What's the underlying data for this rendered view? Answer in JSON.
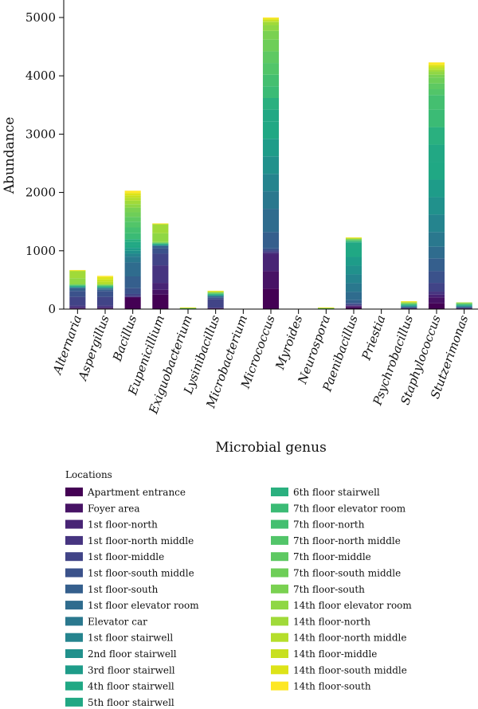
{
  "chart_data": {
    "type": "bar",
    "stacked": true,
    "xlabel": "Microbial genus",
    "ylabel": "Abundance",
    "ylim": [
      0,
      5300
    ],
    "yticks": [
      0,
      1000,
      2000,
      3000,
      4000,
      5000
    ],
    "categories": [
      "Alternaria",
      "Aspergillus",
      "Bacillus",
      "Eupenicillium",
      "Exiguobacterium",
      "Lysinibacillus",
      "Microbacterium",
      "Micrococcus",
      "Myroides",
      "Neurospora",
      "Paenibacillus",
      "Priestia",
      "Psychrobacillus",
      "Staphylococcus",
      "Stutzerimonas"
    ],
    "legend_title": "Locations",
    "legend_position": "bottom",
    "series": [
      {
        "name": "Apartment entrance",
        "color": "#440154",
        "values": [
          10,
          10,
          200,
          250,
          2,
          10,
          0,
          350,
          0,
          1,
          30,
          0,
          5,
          100,
          5
        ]
      },
      {
        "name": "Foyer area",
        "color": "#471365",
        "values": [
          10,
          10,
          5,
          80,
          1,
          5,
          0,
          300,
          0,
          1,
          20,
          0,
          5,
          100,
          5
        ]
      },
      {
        "name": "1st floor-north",
        "color": "#482475",
        "values": [
          10,
          10,
          5,
          120,
          1,
          5,
          0,
          300,
          0,
          1,
          10,
          0,
          5,
          50,
          5
        ]
      },
      {
        "name": "1st floor-north middle",
        "color": "#463480",
        "values": [
          30,
          30,
          10,
          300,
          1,
          5,
          0,
          30,
          0,
          1,
          5,
          0,
          5,
          50,
          5
        ]
      },
      {
        "name": "1st floor-middle",
        "color": "#414487",
        "values": [
          150,
          150,
          40,
          200,
          1,
          150,
          0,
          30,
          0,
          1,
          20,
          0,
          5,
          150,
          5
        ]
      },
      {
        "name": "1st floor-south middle",
        "color": "#3b528b",
        "values": [
          100,
          100,
          100,
          90,
          1,
          20,
          0,
          30,
          0,
          1,
          20,
          0,
          5,
          200,
          5
        ]
      },
      {
        "name": "1st floor-south",
        "color": "#355f8d",
        "values": [
          50,
          20,
          200,
          40,
          1,
          20,
          0,
          280,
          0,
          1,
          50,
          0,
          5,
          220,
          5
        ]
      },
      {
        "name": "1st floor elevator room",
        "color": "#2f6c8e",
        "values": [
          5,
          20,
          240,
          5,
          1,
          5,
          0,
          400,
          0,
          1,
          140,
          0,
          5,
          200,
          5
        ]
      },
      {
        "name": "Elevator car",
        "color": "#2a788e",
        "values": [
          5,
          10,
          100,
          5,
          1,
          5,
          0,
          300,
          0,
          1,
          150,
          0,
          5,
          250,
          5
        ]
      },
      {
        "name": "1st floor stairwell",
        "color": "#25848e",
        "values": [
          5,
          5,
          50,
          5,
          1,
          5,
          0,
          300,
          0,
          1,
          150,
          0,
          5,
          300,
          5
        ]
      },
      {
        "name": "2nd floor stairwell",
        "color": "#21918c",
        "values": [
          5,
          5,
          50,
          5,
          1,
          5,
          0,
          300,
          0,
          1,
          150,
          0,
          5,
          300,
          5
        ]
      },
      {
        "name": "3rd floor stairwell",
        "color": "#1e9c89",
        "values": [
          5,
          5,
          50,
          5,
          1,
          5,
          0,
          300,
          0,
          1,
          150,
          0,
          5,
          300,
          5
        ]
      },
      {
        "name": "4th floor stairwell",
        "color": "#20a884",
        "values": [
          5,
          5,
          50,
          5,
          1,
          5,
          0,
          300,
          0,
          1,
          150,
          0,
          5,
          300,
          5
        ]
      },
      {
        "name": "5th floor stairwell",
        "color": "#22a884",
        "values": [
          5,
          5,
          50,
          5,
          1,
          5,
          0,
          200,
          0,
          1,
          100,
          0,
          5,
          300,
          5
        ]
      },
      {
        "name": "6th floor stairwell",
        "color": "#2ab07f",
        "values": [
          5,
          5,
          50,
          5,
          1,
          5,
          0,
          200,
          0,
          1,
          10,
          0,
          5,
          300,
          5
        ]
      },
      {
        "name": "7th floor elevator room",
        "color": "#3bbb75",
        "values": [
          5,
          5,
          100,
          5,
          1,
          5,
          0,
          200,
          0,
          1,
          10,
          0,
          5,
          300,
          5
        ]
      },
      {
        "name": "7th floor-north",
        "color": "#44bf70",
        "values": [
          5,
          5,
          100,
          5,
          1,
          5,
          0,
          200,
          0,
          1,
          10,
          0,
          5,
          250,
          5
        ]
      },
      {
        "name": "7th floor-north middle",
        "color": "#52c569",
        "values": [
          5,
          5,
          100,
          5,
          1,
          5,
          0,
          200,
          0,
          1,
          10,
          0,
          5,
          100,
          5
        ]
      },
      {
        "name": "7th floor-middle",
        "color": "#5ec962",
        "values": [
          5,
          5,
          80,
          5,
          1,
          5,
          0,
          200,
          0,
          1,
          5,
          0,
          5,
          100,
          5
        ]
      },
      {
        "name": "7th floor-south middle",
        "color": "#6ece58",
        "values": [
          5,
          5,
          80,
          5,
          1,
          5,
          0,
          200,
          0,
          1,
          5,
          0,
          5,
          100,
          5
        ]
      },
      {
        "name": "7th floor-south",
        "color": "#7ad151",
        "values": [
          5,
          5,
          80,
          5,
          1,
          5,
          0,
          150,
          0,
          1,
          5,
          0,
          5,
          50,
          5
        ]
      },
      {
        "name": "14th floor elevator room",
        "color": "#8fd744",
        "values": [
          100,
          5,
          60,
          150,
          1,
          5,
          0,
          100,
          0,
          1,
          5,
          0,
          5,
          50,
          5
        ]
      },
      {
        "name": "14th floor-north",
        "color": "#a0da39",
        "values": [
          120,
          5,
          60,
          150,
          1,
          5,
          0,
          50,
          0,
          1,
          5,
          0,
          5,
          30,
          5
        ]
      },
      {
        "name": "14th floor-north middle",
        "color": "#b5de2b",
        "values": [
          5,
          40,
          50,
          5,
          1,
          5,
          0,
          20,
          0,
          1,
          5,
          0,
          5,
          30,
          0
        ]
      },
      {
        "name": "14th floor-middle",
        "color": "#c8e020",
        "values": [
          5,
          40,
          40,
          5,
          1,
          5,
          0,
          20,
          0,
          1,
          5,
          0,
          5,
          30,
          0
        ]
      },
      {
        "name": "14th floor-south middle",
        "color": "#dde318",
        "values": [
          5,
          40,
          40,
          5,
          1,
          5,
          0,
          20,
          0,
          1,
          5,
          0,
          5,
          30,
          0
        ]
      },
      {
        "name": "14th floor-south",
        "color": "#fde725",
        "values": [
          5,
          20,
          40,
          5,
          1,
          5,
          0,
          20,
          0,
          1,
          5,
          0,
          5,
          40,
          0
        ]
      }
    ]
  }
}
